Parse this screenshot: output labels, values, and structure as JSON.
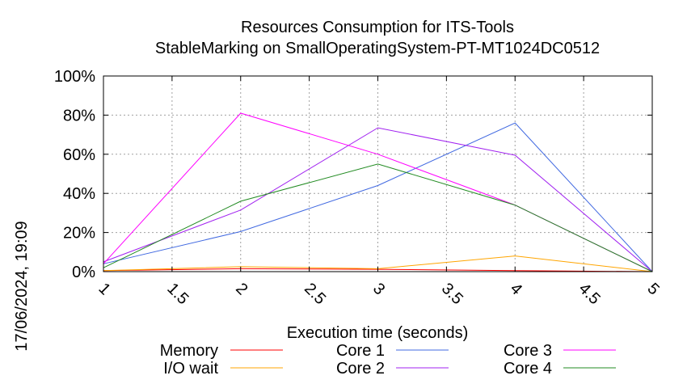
{
  "chart_data": {
    "type": "line",
    "title": [
      "Resources Consumption for ITS-Tools",
      "StableMarking on SmallOperatingSystem-PT-MT1024DC0512"
    ],
    "xlabel": "Execution time (seconds)",
    "ylabel": "",
    "xlim": [
      1,
      5
    ],
    "ylim": [
      0,
      100
    ],
    "x_ticks": [
      "1",
      "1.5",
      "2",
      "2.5",
      "3",
      "3.5",
      "4",
      "4.5",
      "5"
    ],
    "y_ticks": [
      "0%",
      "20%",
      "40%",
      "60%",
      "80%",
      "100%"
    ],
    "grid": true,
    "legend_position": "bottom",
    "x": [
      1,
      2,
      3,
      4,
      5
    ],
    "series": [
      {
        "name": "Memory",
        "color": "#ff0000",
        "values": [
          0.5,
          1.5,
          1.2,
          0.5,
          0
        ]
      },
      {
        "name": "I/O wait",
        "color": "#ffa500",
        "values": [
          0.5,
          2.5,
          1.5,
          8,
          0
        ]
      },
      {
        "name": "Core 1",
        "color": "#4169e1",
        "values": [
          4,
          20.5,
          44,
          76,
          0
        ]
      },
      {
        "name": "Core 2",
        "color": "#a020f0",
        "values": [
          5,
          31.5,
          73.5,
          59.5,
          0
        ]
      },
      {
        "name": "Core 3",
        "color": "#ff00ff",
        "values": [
          4,
          81,
          60,
          34,
          0
        ]
      },
      {
        "name": "Core 4",
        "color": "#228b22",
        "values": [
          2,
          36,
          55,
          34,
          0
        ]
      }
    ]
  },
  "timestamp": "17/06/2024, 19:09"
}
